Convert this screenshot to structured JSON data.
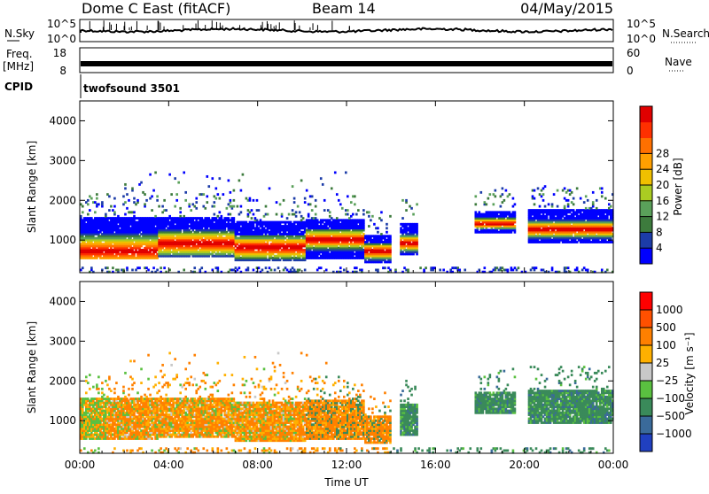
{
  "header": {
    "station": "Dome C East (fitACF)",
    "beam": "Beam 14",
    "date": "04/May/2015"
  },
  "top_panels": {
    "nsky": {
      "label": "N.Sky",
      "tick_top": "10^5",
      "tick_bottom": "10^0"
    },
    "nsearch": {
      "label": "N.Search",
      "tick_top": "10^5",
      "tick_bottom": "10^0"
    },
    "freq": {
      "label_line1": "Freq.",
      "label_line2": "[MHz]",
      "tick_top": "18",
      "tick_bottom": "8"
    },
    "nave": {
      "label": "Nave",
      "tick_top": "60",
      "tick_bottom": "0"
    },
    "cpid": {
      "label": "CPID",
      "program": "twofsound 3501"
    }
  },
  "chart_data": [
    {
      "type": "heatmap",
      "name": "power",
      "ylabel": "Slant Range [km]",
      "xlabel": "",
      "ylim": [
        180,
        4500
      ],
      "yticks": [
        "1000",
        "2000",
        "3000",
        "4000"
      ],
      "ytick_values": [
        1000,
        2000,
        3000,
        4000
      ],
      "colorbar": {
        "label": "Power [dB]",
        "ticks": [
          "4",
          "8",
          "12",
          "16",
          "20",
          "24",
          "28"
        ],
        "colors": [
          "#0000ff",
          "#1c3ca8",
          "#3d7b3d",
          "#5aa05a",
          "#aacc22",
          "#f0c000",
          "#ffa000",
          "#ff7000",
          "#ff3000",
          "#e00000"
        ]
      },
      "grid": false
    },
    {
      "type": "heatmap",
      "name": "velocity",
      "ylabel": "Slant Range [km]",
      "xlabel": "Time UT",
      "ylim": [
        180,
        4500
      ],
      "yticks": [
        "1000",
        "2000",
        "3000",
        "4000"
      ],
      "ytick_values": [
        1000,
        2000,
        3000,
        4000
      ],
      "xticks": [
        "00:00",
        "04:00",
        "08:00",
        "12:00",
        "16:00",
        "20:00",
        "00:00"
      ],
      "xtick_values": [
        0,
        4,
        8,
        12,
        16,
        20,
        24
      ],
      "colorbar": {
        "label": "Velocity [m s⁻¹]",
        "ticks": [
          "1000",
          "500",
          "100",
          "25",
          "−25",
          "−100",
          "−500",
          "−1000"
        ],
        "colors": [
          "#2040c0",
          "#3a6a9a",
          "#3a8a5a",
          "#5ac040",
          "#c8c8c8",
          "#ffb000",
          "#ff8000",
          "#ff5000",
          "#ff0000"
        ]
      },
      "grid": false
    }
  ]
}
